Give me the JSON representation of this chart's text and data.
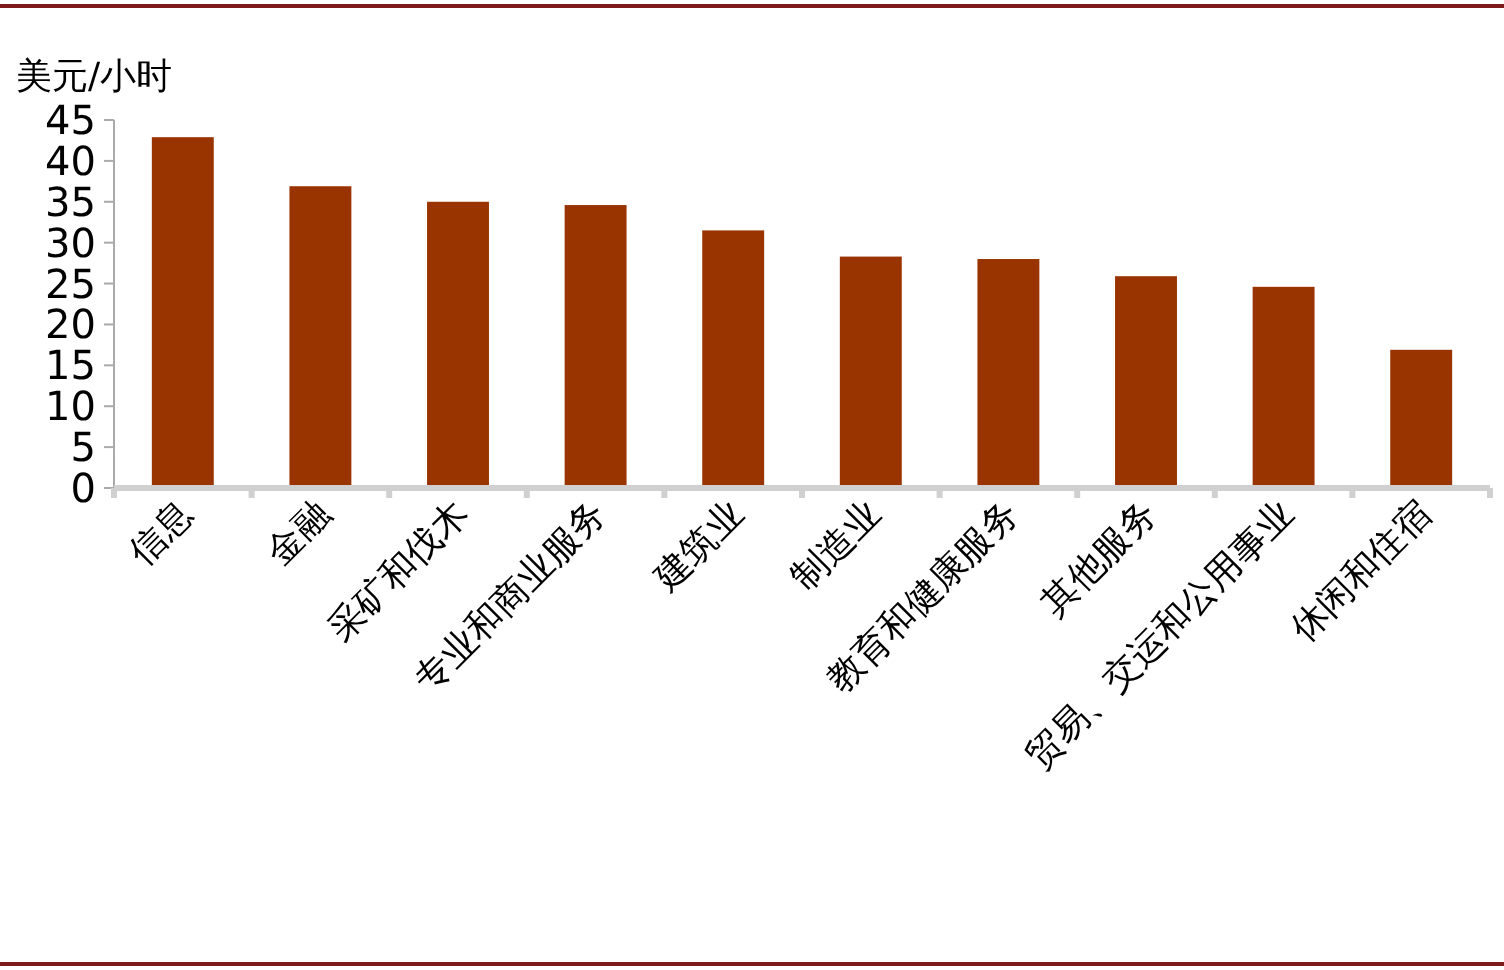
{
  "chart_data": {
    "type": "bar",
    "ylabel": "美元/小时",
    "categories": [
      "信息",
      "金融",
      "采矿和伐木",
      "专业和商业服务",
      "建筑业",
      "制造业",
      "教育和健康服务",
      "其他服务",
      "贸易、交运和公用事业",
      "休闲和住宿"
    ],
    "values": [
      42.9,
      36.9,
      35.0,
      34.6,
      31.5,
      28.3,
      28.0,
      25.9,
      24.6,
      16.9
    ],
    "color": "#993300",
    "ylim": [
      0,
      45
    ],
    "yticks": [
      0,
      5,
      10,
      15,
      20,
      25,
      30,
      35,
      40,
      45
    ]
  }
}
